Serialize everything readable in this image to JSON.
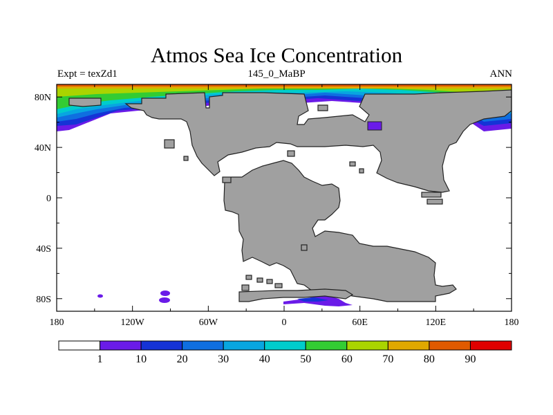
{
  "title": "Atmos Sea Ice Concentration",
  "experiment_label": "Expt = texZd1",
  "period_label": "145_0_MaBP",
  "season_label": "ANN",
  "colors": {
    "land": "#a0a0a0",
    "land_outline": "#222222",
    "no_ice": "#ffffff"
  },
  "chart_data": {
    "type": "heatmap",
    "title": "Atmos Sea Ice Concentration",
    "x_ticks": [
      "180",
      "120W",
      "60W",
      "0",
      "60E",
      "120E",
      "180"
    ],
    "y_ticks": [
      "80N",
      "40N",
      "0",
      "40S",
      "80S"
    ],
    "xlim": [
      -180,
      180
    ],
    "ylim": [
      -90,
      90
    ],
    "colorbar": {
      "labels": [
        "1",
        "10",
        "20",
        "30",
        "40",
        "50",
        "60",
        "70",
        "80",
        "90"
      ],
      "colors": [
        "#ffffff",
        "#6a1be8",
        "#1533d6",
        "#0f6fe0",
        "#08a6e0",
        "#00cccc",
        "#33cc33",
        "#aad400",
        "#e0a800",
        "#e05a00",
        "#e00000"
      ]
    }
  }
}
